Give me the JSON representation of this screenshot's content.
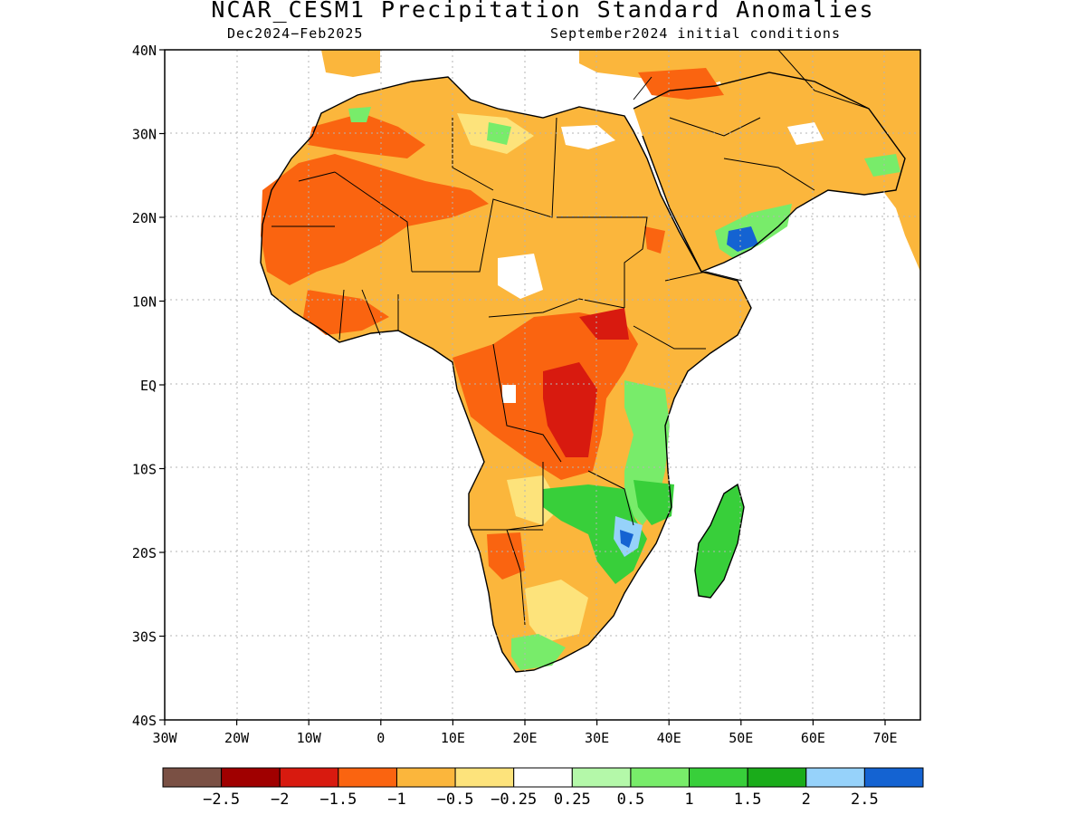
{
  "title": "NCAR_CESM1 Precipitation Standard Anomalies",
  "subtitle_left": "Dec2024−Feb2025",
  "subtitle_right": "September2024 initial conditions",
  "y_ticks": [
    "40N",
    "30N",
    "20N",
    "10N",
    "EQ",
    "10S",
    "20S",
    "30S",
    "40S"
  ],
  "x_ticks": [
    "30W",
    "20W",
    "10W",
    "0",
    "10E",
    "20E",
    "30E",
    "40E",
    "50E",
    "60E",
    "70E"
  ],
  "colorbar": {
    "colors": [
      "#7a5044",
      "#a00000",
      "#d81a0f",
      "#fa6410",
      "#fbb63c",
      "#fde37b",
      "#ffffff",
      "#b4f8a9",
      "#78ec6a",
      "#38cf3a",
      "#1aac1a",
      "#96d2fa",
      "#1463d2"
    ],
    "labels": [
      "−2.5",
      "−2",
      "−1.5",
      "−1",
      "−0.5",
      "−0.25",
      "0.25",
      "0.5",
      "1",
      "1.5",
      "2",
      "2.5"
    ]
  },
  "legend_colors": {
    "land_outline": "#000000",
    "grid": "#b4b4b4"
  }
}
